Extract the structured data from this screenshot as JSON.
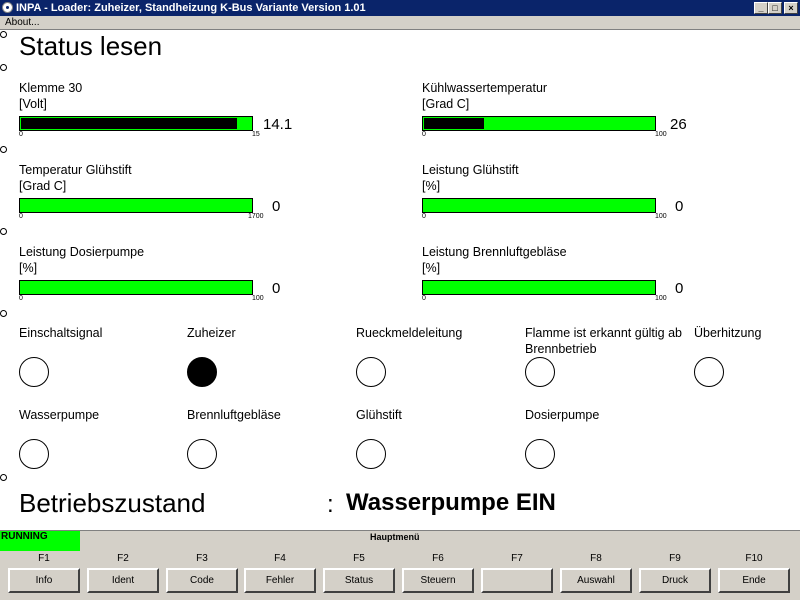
{
  "window": {
    "title": "INPA - Loader:  Zuheizer, Standheizung K-Bus Variante Version 1.01",
    "controls": {
      "minimize": "_",
      "maximize": "□",
      "close": "×"
    }
  },
  "menu": {
    "about": "About..."
  },
  "page_title": "Status lesen",
  "gauges": [
    {
      "name": "Klemme 30",
      "unit": "[Volt]",
      "min": "0",
      "max": "15",
      "value": "14.1",
      "level": 0.94
    },
    {
      "name": "Kühlwassertemperatur",
      "unit": "[Grad C]",
      "min": "0",
      "max": "100",
      "value": "26",
      "level": 0.26
    },
    {
      "name": "Temperatur Glühstift",
      "unit": "[Grad C]",
      "min": "0",
      "max": "1700",
      "value": "0",
      "level": 0
    },
    {
      "name": "Leistung Glühstift",
      "unit": "[%]",
      "min": "0",
      "max": "100",
      "value": "0",
      "level": 0
    },
    {
      "name": "Leistung Dosierpumpe",
      "unit": "[%]",
      "min": "0",
      "max": "100",
      "value": "0",
      "level": 0
    },
    {
      "name": "Leistung Brennluftgebläse",
      "unit": "[%]",
      "min": "0",
      "max": "100",
      "value": "0",
      "level": 0
    }
  ],
  "signals": [
    {
      "label": "Einschaltsignal",
      "on": false
    },
    {
      "label": "Zuheizer",
      "on": true
    },
    {
      "label": "Rueckmeldeleitung",
      "on": false
    },
    {
      "label": "Flamme ist erkannt gültig ab Brennbetrieb",
      "on": false
    },
    {
      "label": "Überhitzung",
      "on": false
    },
    {
      "label": "Wasserpumpe",
      "on": false
    },
    {
      "label": "Brennluftgebläse",
      "on": false
    },
    {
      "label": "Glühstift",
      "on": false
    },
    {
      "label": "Dosierpumpe",
      "on": false
    }
  ],
  "betriebszustand": {
    "label": "Betriebszustand",
    "separator": ":",
    "value": "Wasserpumpe EIN"
  },
  "status": {
    "running": "RUNNING",
    "menu_name": "Hauptmenü"
  },
  "function_keys": [
    {
      "key": "F1",
      "label": "Info"
    },
    {
      "key": "F2",
      "label": "Ident"
    },
    {
      "key": "F3",
      "label": "Code"
    },
    {
      "key": "F4",
      "label": "Fehler"
    },
    {
      "key": "F5",
      "label": "Status"
    },
    {
      "key": "F6",
      "label": "Steuern"
    },
    {
      "key": "F7",
      "label": ""
    },
    {
      "key": "F8",
      "label": "Auswahl"
    },
    {
      "key": "F9",
      "label": "Druck"
    },
    {
      "key": "F10",
      "label": "Ende"
    }
  ],
  "colors": {
    "bar_green": "#00ff00",
    "bar_fill": "#000000",
    "titlebar": "#0a246a",
    "face": "#d4d0c8"
  }
}
